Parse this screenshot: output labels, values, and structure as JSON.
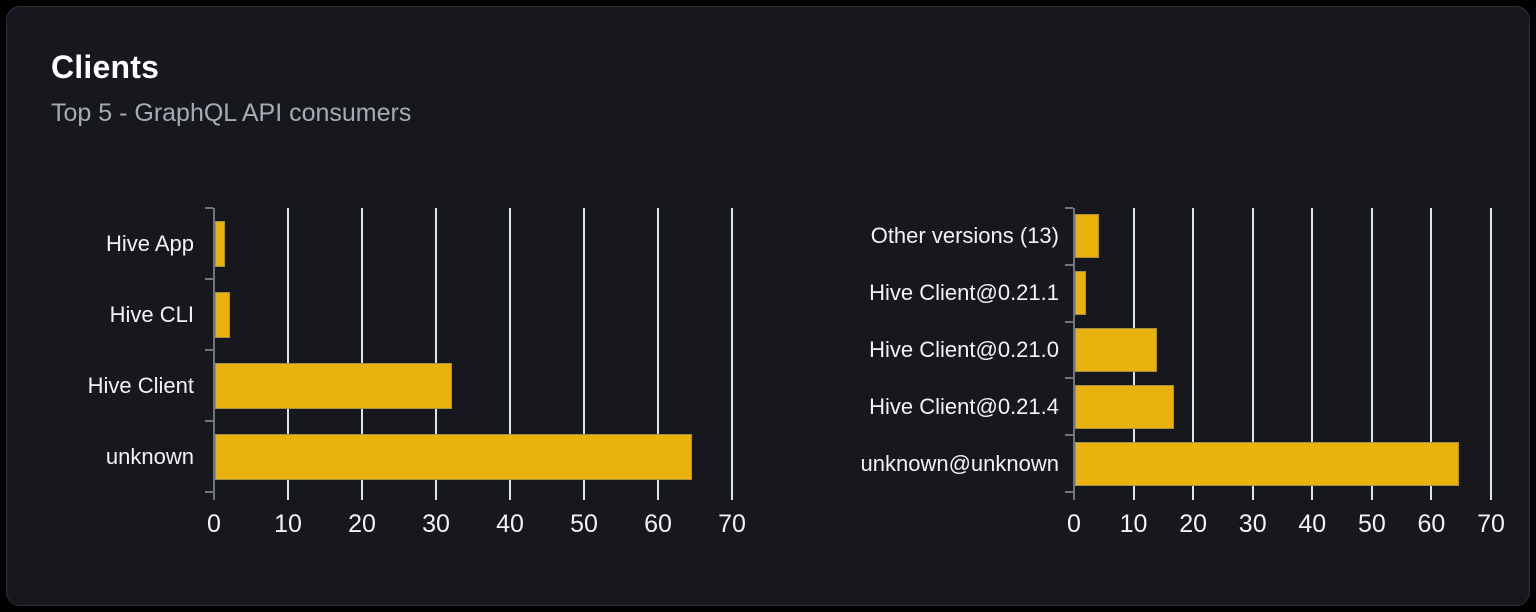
{
  "card": {
    "title": "Clients",
    "subtitle": "Top 5 - GraphQL API consumers"
  },
  "colors": {
    "page_bg": "#000000",
    "card_bg": "#16181e",
    "card_border": "#2a2e35",
    "title": "#ffffff",
    "subtitle": "#a7abb3",
    "bar": "#e9b20d",
    "gridline": "#dfe3ec",
    "axis": "#70747c",
    "tick_text": "#f2f3f5"
  },
  "chart_data": [
    {
      "type": "bar",
      "orientation": "horizontal",
      "title": "",
      "xlabel": "",
      "ylabel": "",
      "categories": [
        "Hive App",
        "Hive CLI",
        "Hive Client",
        "unknown"
      ],
      "values": [
        1.3,
        2,
        32,
        64.4
      ],
      "xticks": [
        0,
        10,
        20,
        30,
        40,
        50,
        60,
        70
      ],
      "xlim": [
        0,
        73
      ],
      "grid": true,
      "legend": "none",
      "bar_color": "#e9b20d"
    },
    {
      "type": "bar",
      "orientation": "horizontal",
      "title": "",
      "xlabel": "",
      "ylabel": "",
      "categories": [
        "Other versions (13)",
        "Hive Client@0.21.1",
        "Hive Client@0.21.0",
        "Hive Client@0.21.4",
        "unknown@unknown"
      ],
      "values": [
        4,
        1.8,
        13.8,
        16.6,
        64.4
      ],
      "xticks": [
        0,
        10,
        20,
        30,
        40,
        50,
        60,
        70
      ],
      "xlim": [
        0,
        73
      ],
      "grid": true,
      "legend": "none",
      "bar_color": "#e9b20d"
    }
  ]
}
